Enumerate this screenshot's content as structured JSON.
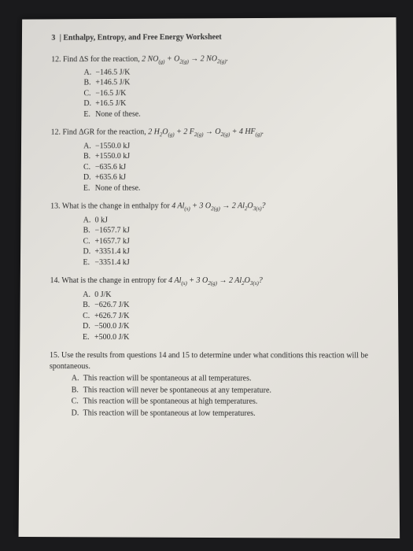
{
  "header": {
    "page_num": "3",
    "title": "Enthalpy, Entropy, and Free Energy Worksheet"
  },
  "q12a": {
    "num": "12.",
    "text_before": "Find ΔS for the reaction, ",
    "equation": "2 NO(g) + O2(g) → 2 NO2(g).",
    "options": {
      "A": "−146.5 J/K",
      "B": "+146.5 J/K",
      "C": "−16.5 J/K",
      "D": "+16.5 J/K",
      "E": "None of these."
    }
  },
  "q12b": {
    "num": "12.",
    "text_before": "Find ΔGR for the reaction, ",
    "equation": "2 H2O(g) + 2 F2(g) → O2(g) + 4 HF(g).",
    "options": {
      "A": "−1550.0 kJ",
      "B": "+1550.0 kJ",
      "C": "−635.6 kJ",
      "D": "+635.6 kJ",
      "E": "None of these."
    }
  },
  "q13": {
    "num": "13.",
    "text": "What is the change in enthalpy for ",
    "equation": "4 Al(s) + 3 O2(g) → 2 Al2O3(s)?",
    "options": {
      "A": "0 kJ",
      "B": "−1657.7 kJ",
      "C": "+1657.7 kJ",
      "D": "+3351.4 kJ",
      "E": "−3351.4 kJ"
    }
  },
  "q14": {
    "num": "14.",
    "text": "What is the change in entropy for ",
    "equation": "4 Al(s) + 3 O2(g) → 2 Al2O3(s)?",
    "options": {
      "A": "0 J/K",
      "B": "−626.7 J/K",
      "C": "+626.7 J/K",
      "D": "−500.0 J/K",
      "E": "+500.0 J/K"
    }
  },
  "q15": {
    "num": "15.",
    "text": "Use the results from questions 14 and 15 to determine under what conditions this reaction will be spontaneous.",
    "options": {
      "A": "This reaction will be spontaneous at all temperatures.",
      "B": "This reaction will never be spontaneous at any temperature.",
      "C": "This reaction will be spontaneous at high temperatures.",
      "D": "This reaction will be spontaneous at low temperatures."
    }
  }
}
